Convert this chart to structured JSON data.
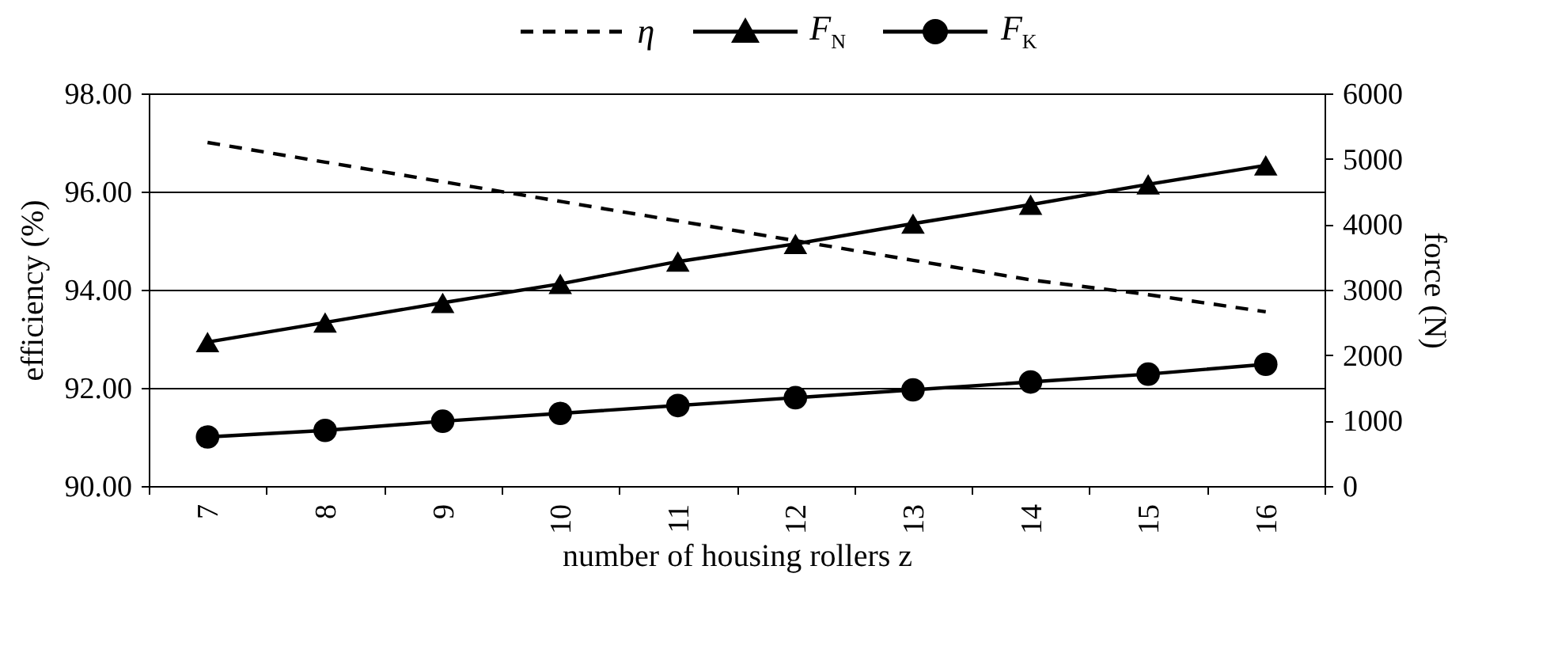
{
  "chart_data": {
    "type": "line",
    "xlabel": "number of housing rollers z",
    "ylabel": "efficiency (%)",
    "y2label": "force (N)",
    "categories": [
      "7",
      "8",
      "9",
      "10",
      "11",
      "12",
      "13",
      "14",
      "15",
      "16"
    ],
    "series": [
      {
        "name": "η",
        "color": "#000000",
        "line_style": "dashed",
        "marker": "none",
        "values": [
          97.0,
          96.6,
          96.2,
          95.8,
          95.4,
          95.0,
          94.6,
          94.2,
          93.9,
          93.55
        ]
      },
      {
        "name": "F$_{N}$",
        "color": "#000000",
        "axis": "y2",
        "marker": "triangle",
        "line_style": "solid",
        "values": [
          2200,
          2500,
          2800,
          3090,
          3430,
          3700,
          4010,
          4300,
          4610,
          4900
        ]
      },
      {
        "name": "F$_{K}$",
        "color": "#000000",
        "axis": "y2",
        "marker": "circle",
        "line_style": "solid",
        "values": [
          750,
          850,
          990,
          1110,
          1230,
          1350,
          1470,
          1590,
          1710,
          1860
        ]
      }
    ],
    "ylim": [
      90,
      98
    ],
    "yticks": [
      {
        "value": 90,
        "label": "90.00"
      },
      {
        "value": 92,
        "label": "92.00"
      },
      {
        "value": 94,
        "label": "94.00"
      },
      {
        "value": 96,
        "label": "96.00"
      },
      {
        "value": 98,
        "label": "98.00"
      }
    ],
    "y2lim": [
      0,
      6000
    ],
    "y2ticks": [
      0,
      1000,
      2000,
      3000,
      4000,
      5000,
      6000
    ],
    "grid": "y",
    "legend": "top"
  }
}
